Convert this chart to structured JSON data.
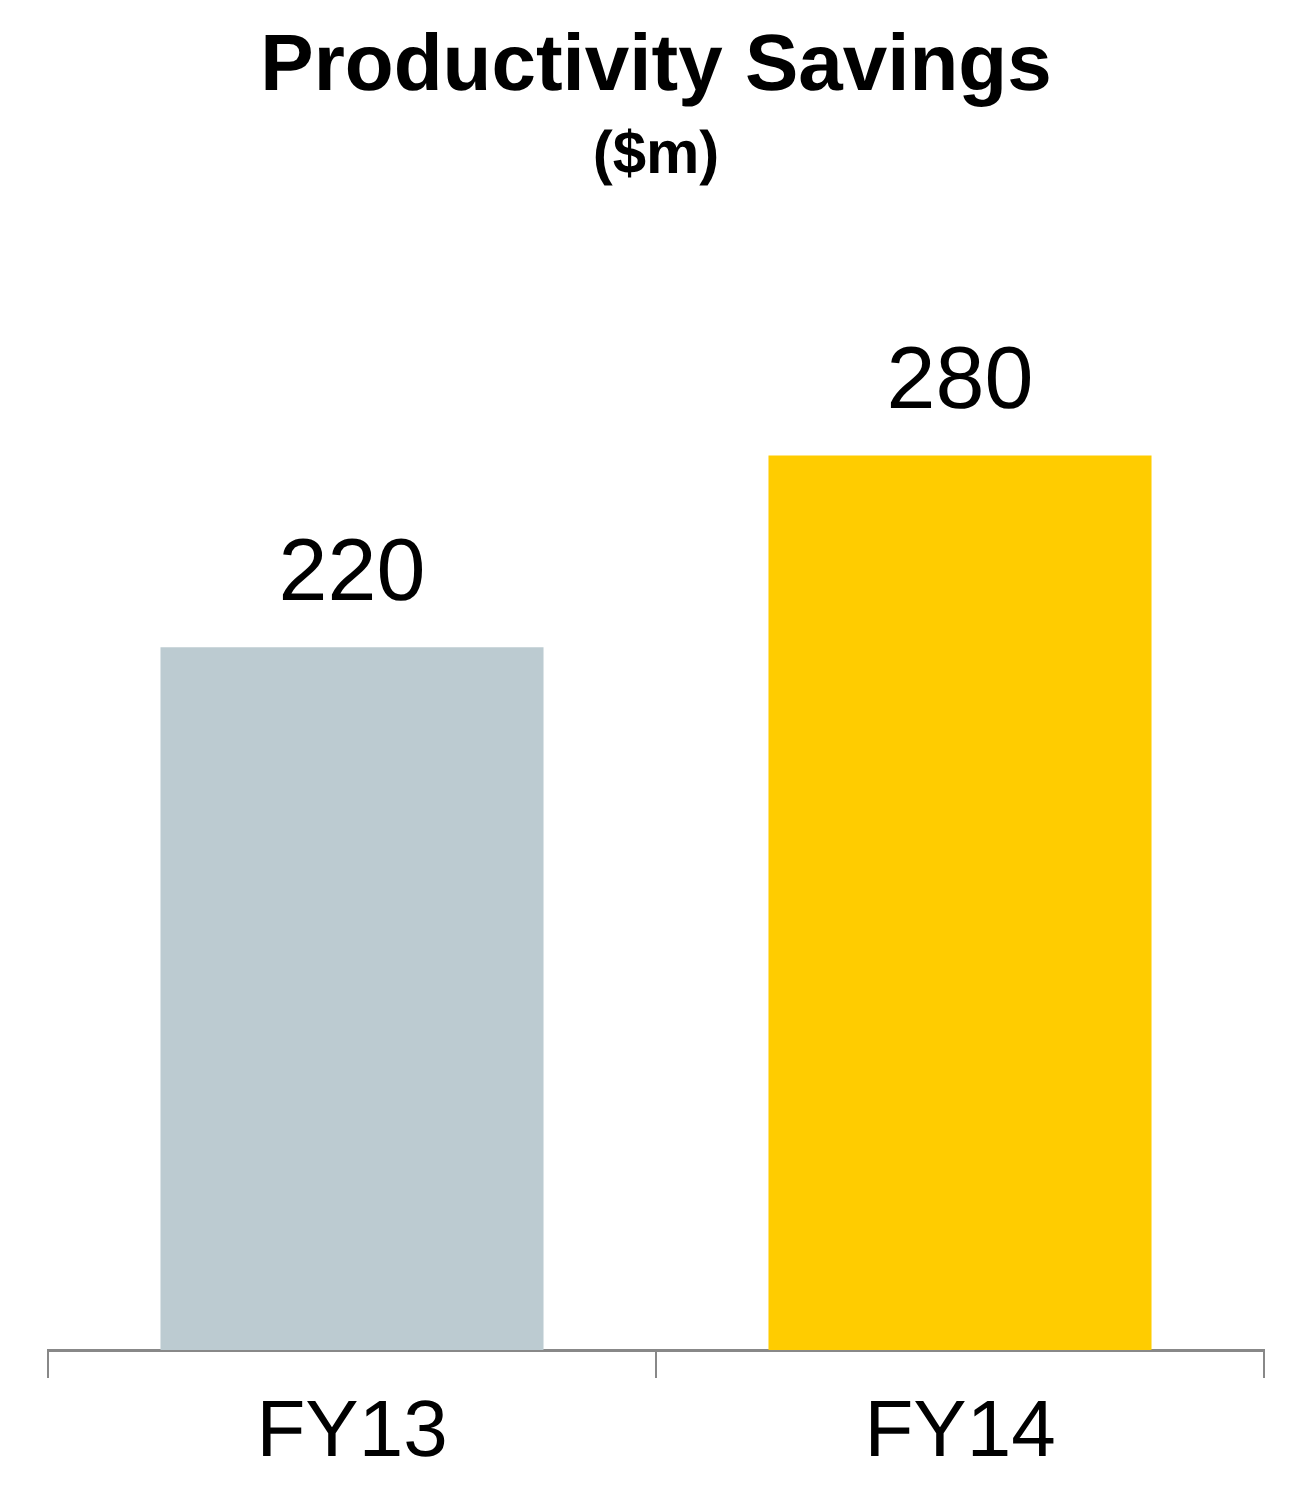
{
  "chart_data": {
    "type": "bar",
    "title": "Productivity Savings",
    "subtitle": "($m)",
    "categories": [
      "FY13",
      "FY14"
    ],
    "values": [
      220,
      280
    ],
    "colors": [
      "#bccbd1",
      "#ffcc00"
    ],
    "data_labels": true
  }
}
